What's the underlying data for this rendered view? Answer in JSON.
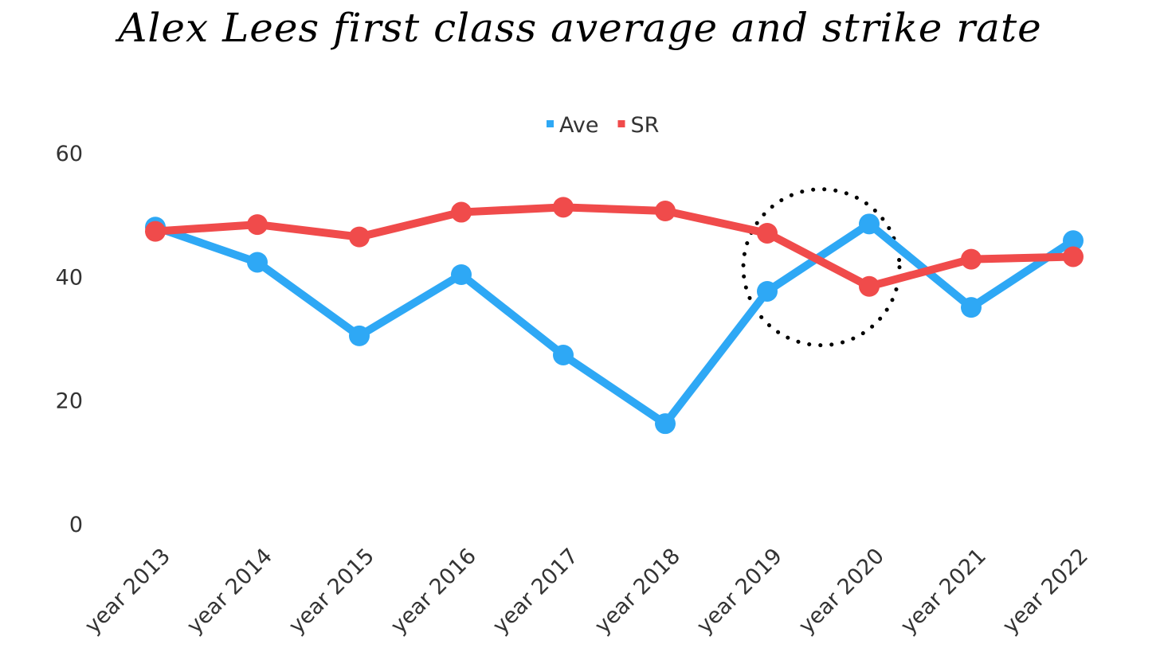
{
  "chart_data": {
    "type": "line",
    "title": "Alex Lees first class average and strike rate",
    "categories": [
      "year 2013",
      "year 2014",
      "year 2015",
      "year 2016",
      "year 2017",
      "year 2018",
      "year 2019",
      "year 2020",
      "year 2021",
      "year 2022"
    ],
    "series": [
      {
        "name": "Ave",
        "color": "#2ea8f5",
        "values": [
          48.0,
          42.3,
          30.4,
          40.3,
          27.3,
          16.2,
          37.6,
          48.5,
          35.0,
          45.8
        ]
      },
      {
        "name": "SR",
        "color": "#f04b4b",
        "values": [
          47.3,
          48.4,
          46.4,
          50.4,
          51.2,
          50.6,
          47.0,
          38.4,
          42.8,
          43.2
        ]
      }
    ],
    "ylim": [
      0,
      60
    ],
    "yticks": [
      0,
      20,
      40,
      60
    ],
    "xlabel": "",
    "ylabel": "",
    "grid": false,
    "legend": "top-center",
    "annotation": {
      "type": "dotted-circle",
      "around_categories": [
        "year 2019",
        "year 2020"
      ]
    }
  }
}
